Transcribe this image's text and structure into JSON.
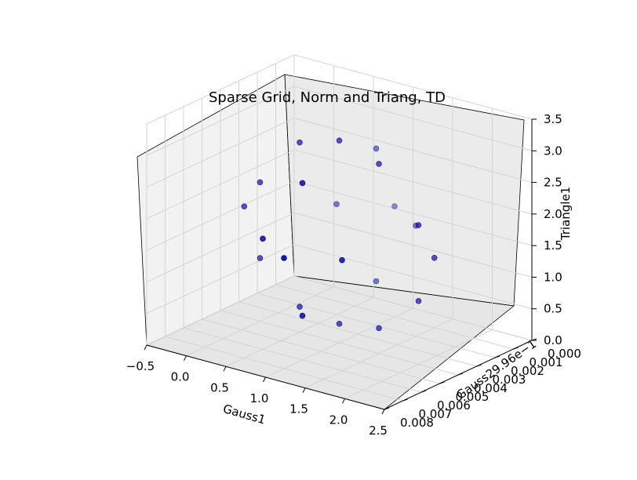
{
  "chart_data": {
    "type": "scatter",
    "projection": "3d",
    "title": "Sparse Grid, Norm and Triang, TD",
    "xlabel": "Gauss1",
    "ylabel": "Gauss2",
    "ylabel_offset": "9.96e−1",
    "zlabel": "Triangle1",
    "xlim": [
      -0.5,
      2.5
    ],
    "ylim": [
      0.0,
      0.008
    ],
    "zlim": [
      0.0,
      3.5
    ],
    "x_ticks": [
      "−0.5",
      "0.0",
      "0.5",
      "1.0",
      "1.5",
      "2.0",
      "2.5"
    ],
    "y_ticks": [
      "0.000",
      "0.001",
      "0.002",
      "0.003",
      "0.004",
      "0.005",
      "0.006",
      "0.007",
      "0.008"
    ],
    "z_ticks": [
      "0.0",
      "0.5",
      "1.0",
      "1.5",
      "2.0",
      "2.5",
      "3.0",
      "3.5"
    ],
    "grid": true,
    "marker_color": "#0000cc",
    "points_description": "approximately spherical sparse grid of points centered near (1.0, 0.004, 1.75)",
    "points": [
      {
        "x": 0.5,
        "y": 0.004,
        "z": 3.0
      },
      {
        "x": 1.0,
        "y": 0.004,
        "z": 3.2
      },
      {
        "x": 1.5,
        "y": 0.004,
        "z": 3.0
      },
      {
        "x": 0.0,
        "y": 0.004,
        "z": 2.2
      },
      {
        "x": 2.0,
        "y": 0.004,
        "z": 2.2
      },
      {
        "x": 1.0,
        "y": 0.002,
        "z": 2.8
      },
      {
        "x": 1.0,
        "y": 0.006,
        "z": 2.8
      },
      {
        "x": -0.2,
        "y": 0.004,
        "z": 1.75
      },
      {
        "x": 2.2,
        "y": 0.004,
        "z": 1.75
      },
      {
        "x": 1.0,
        "y": 0.001,
        "z": 1.75
      },
      {
        "x": 1.0,
        "y": 0.007,
        "z": 1.75
      },
      {
        "x": 0.0,
        "y": 0.004,
        "z": 1.0
      },
      {
        "x": 2.0,
        "y": 0.004,
        "z": 1.0
      },
      {
        "x": 0.5,
        "y": 0.004,
        "z": 0.4
      },
      {
        "x": 1.0,
        "y": 0.004,
        "z": 0.3
      },
      {
        "x": 1.5,
        "y": 0.004,
        "z": 0.4
      },
      {
        "x": 1.0,
        "y": 0.002,
        "z": 0.7
      },
      {
        "x": 1.0,
        "y": 0.006,
        "z": 0.7
      },
      {
        "x": 0.5,
        "y": 0.002,
        "z": 1.75
      },
      {
        "x": 1.5,
        "y": 0.006,
        "z": 1.75
      },
      {
        "x": 0.5,
        "y": 0.006,
        "z": 1.75
      },
      {
        "x": 1.5,
        "y": 0.002,
        "z": 1.75
      }
    ]
  }
}
